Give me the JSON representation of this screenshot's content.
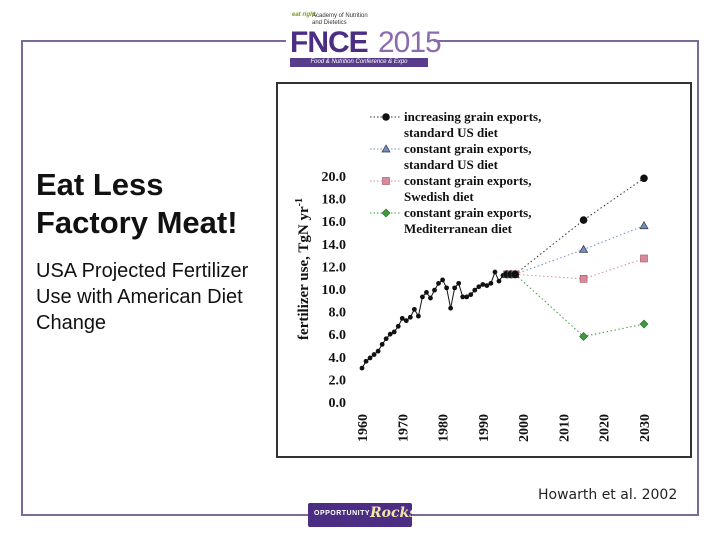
{
  "logo_top": {
    "eat_right": "eat right.",
    "academy_line1": "Academy of Nutrition",
    "academy_line2": "and Dietetics",
    "fnce": "FNCE",
    "year": "2015",
    "banner": "Food & Nutrition Conference & Expo"
  },
  "slide": {
    "title": "Eat Less Factory Meat!",
    "subtitle": "USA Projected Fertilizer Use with American Diet Change",
    "citation": "Howarth et al. 2002"
  },
  "logo_bottom": {
    "text": "OPPORTUNITY",
    "script": "Rocks!"
  },
  "chart_data": {
    "type": "line",
    "ylabel": "fertilizer use, TgN yr",
    "ylabel_superscript": "-1",
    "ylim": [
      0,
      20
    ],
    "xlim": [
      1960,
      2030
    ],
    "y_ticks": [
      "0.0",
      "2.0",
      "4.0",
      "6.0",
      "8.0",
      "10.0",
      "12.0",
      "14.0",
      "16.0",
      "18.0",
      "20.0"
    ],
    "x_ticks": [
      "1960",
      "1970",
      "1980",
      "1990",
      "2000",
      "2010",
      "2020",
      "2030"
    ],
    "legend_position": "top-right",
    "historical": {
      "x": [
        1960,
        1961,
        1962,
        1963,
        1964,
        1965,
        1966,
        1967,
        1968,
        1969,
        1970,
        1971,
        1972,
        1973,
        1974,
        1975,
        1976,
        1977,
        1978,
        1979,
        1980,
        1981,
        1982,
        1983,
        1984,
        1985,
        1986,
        1987,
        1988,
        1989,
        1990,
        1991,
        1992,
        1993,
        1994,
        1995,
        1996,
        1997,
        1998
      ],
      "y": [
        3.0,
        3.6,
        3.9,
        4.2,
        4.5,
        5.1,
        5.6,
        6.0,
        6.2,
        6.7,
        7.4,
        7.2,
        7.5,
        8.2,
        7.6,
        9.3,
        9.7,
        9.2,
        9.9,
        10.5,
        10.8,
        10.1,
        8.3,
        10.1,
        10.5,
        9.3,
        9.3,
        9.5,
        9.9,
        10.2,
        10.4,
        10.3,
        10.5,
        11.5,
        10.7,
        11.2,
        11.3,
        11.3,
        11.3
      ]
    },
    "series": [
      {
        "name": "increasing grain exports, standard US diet",
        "marker": "circle",
        "color": "#111111",
        "x": [
          1998,
          2015,
          2030
        ],
        "y": [
          11.3,
          16.1,
          19.8
        ]
      },
      {
        "name": "constant grain exports, standard US diet",
        "marker": "triangle",
        "color": "#6d8fc6",
        "x": [
          1998,
          2015,
          2030
        ],
        "y": [
          11.3,
          13.5,
          15.6
        ]
      },
      {
        "name": "constant grain exports, Swedish diet",
        "marker": "square",
        "color": "#d98a9a",
        "x": [
          1998,
          2015,
          2030
        ],
        "y": [
          11.3,
          10.9,
          12.7
        ]
      },
      {
        "name": "constant grain exports, Mediterranean diet",
        "marker": "diamond",
        "color": "#3e9a3e",
        "x": [
          1998,
          2015,
          2030
        ],
        "y": [
          11.3,
          5.8,
          6.9
        ]
      }
    ],
    "legend_lines": [
      [
        "increasing grain exports,",
        "standard US diet"
      ],
      [
        "constant grain exports,",
        "standard US diet"
      ],
      [
        "constant grain exports,",
        "Swedish diet"
      ],
      [
        "constant grain exports,",
        "Mediterranean diet"
      ]
    ]
  }
}
